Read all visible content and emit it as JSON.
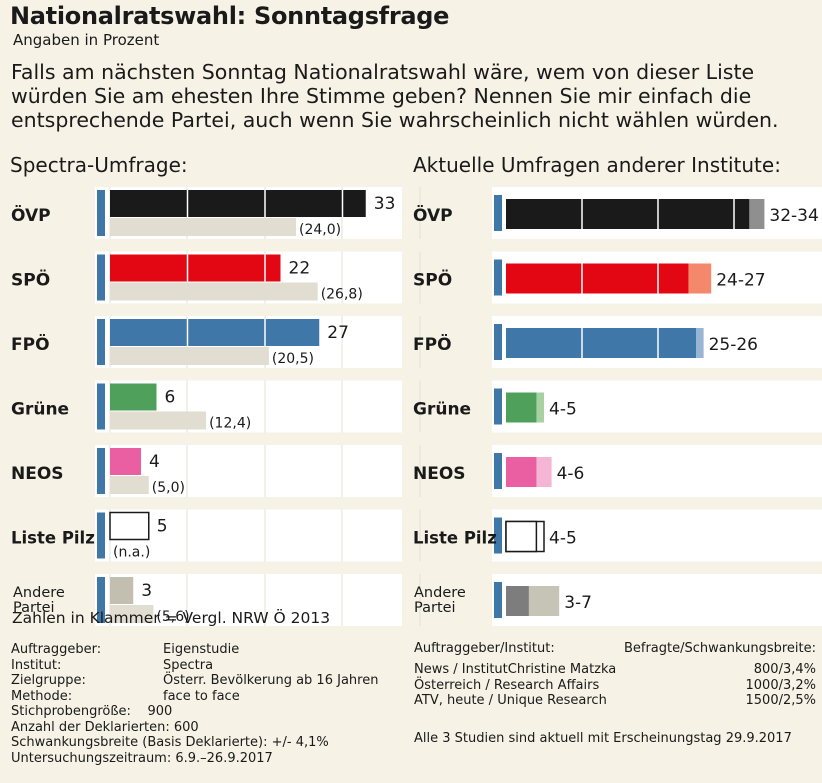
{
  "header": {
    "title": "Nationalratswahl: Sonntagsfrage",
    "subtitle": "Angaben in Prozent",
    "question": "Falls am nächsten Sonntag Nationalratswahl wäre, wem von dieser Liste würden Sie am ehesten Ihre Stimme geben?  Nennen Sie mir einfach die entsprechende Partei, auch wenn Sie wahrscheinlich nicht wählen würden."
  },
  "chart_data": [
    {
      "type": "bar",
      "title": "Spectra-Umfrage:",
      "categories": [
        "ÖVP",
        "SPÖ",
        "FPÖ",
        "Grüne",
        "NEOS",
        "Liste Pilz",
        "Andere Partei"
      ],
      "category_lines": [
        [
          "ÖVP"
        ],
        [
          "SPÖ"
        ],
        [
          "FPÖ"
        ],
        [
          "Grüne"
        ],
        [
          "NEOS"
        ],
        [
          "Liste Pilz"
        ],
        [
          "Andere",
          "Partei"
        ]
      ],
      "series": [
        {
          "values": [
            33,
            22,
            27,
            6,
            4,
            5,
            3
          ],
          "labels": [
            "33",
            "22",
            "27",
            "6",
            "4",
            "5",
            "3"
          ]
        },
        {
          "values": [
            24.0,
            26.8,
            20.5,
            12.4,
            5.0,
            null,
            5.6
          ],
          "labels": [
            "(24,0)",
            "(26,8)",
            "(20,5)",
            "(12,4)",
            "(5,0)",
            "(n.a.)",
            "(5,6)"
          ]
        }
      ],
      "colors": [
        "#1a1a1a",
        "#e30613",
        "#3f77a8",
        "#4fa05a",
        "#ea5ea2",
        "#ffffff",
        "#c2bfb1"
      ],
      "comparison_color": "#e1ddd0",
      "xlim": [
        0,
        35
      ]
    },
    {
      "type": "bar",
      "title": "Aktuelle Umfragen anderer Institute:",
      "categories": [
        "ÖVP",
        "SPÖ",
        "FPÖ",
        "Grüne",
        "NEOS",
        "Liste Pilz",
        "Andere Partei"
      ],
      "category_lines": [
        [
          "ÖVP"
        ],
        [
          "SPÖ"
        ],
        [
          "FPÖ"
        ],
        [
          "Grüne"
        ],
        [
          "NEOS"
        ],
        [
          "Liste Pilz"
        ],
        [
          "Andere",
          "Partei"
        ]
      ],
      "ranges": [
        [
          32,
          34
        ],
        [
          24,
          27
        ],
        [
          25,
          26
        ],
        [
          4,
          5
        ],
        [
          4,
          6
        ],
        [
          4,
          5
        ],
        [
          3,
          7
        ]
      ],
      "labels": [
        "32-34",
        "24-27",
        "25-26",
        "4-5",
        "4-6",
        "4-5",
        "3-7"
      ],
      "colors": [
        "#1a1a1a",
        "#e30613",
        "#3f77a8",
        "#4fa05a",
        "#ea5ea2",
        "#ffffff",
        "#7d7d7d"
      ],
      "range_colors": [
        "#8f8f8f",
        "#f4886b",
        "#9ab5d3",
        "#a7d0a3",
        "#f5b5d5",
        "#ffffff",
        "#c6c3b7"
      ],
      "xlim": [
        0,
        35
      ]
    }
  ],
  "accent_color": "#3f77a8",
  "legend_note": "Zahlen in Klammer = Vergl. NRW Ö 2013",
  "meta_left": {
    "labels": [
      "Auftraggeber:",
      "Institut:",
      "Zielgruppe:",
      "Methode:"
    ],
    "values": [
      "Eigenstudie",
      "Spectra",
      "Österr. Bevölkerung ab 16 Jahren",
      "face to face"
    ],
    "lines": [
      "Stichprobengröße:    900",
      "Anzahl der Deklarierten: 600",
      "Schwankungsbreite (Basis Deklarierte): +/- 4,1%",
      "Untersuchungszeitraum: 6.9.–26.9.2017"
    ]
  },
  "meta_right": {
    "header_left": "Auftraggeber/Institut:",
    "header_right": "Befragte/Schwankungsbreite:",
    "rows": [
      {
        "name": "News / InstitutChristine Matzka",
        "value": "800/3,4%"
      },
      {
        "name": "Österreich / Research Affairs",
        "value": "1000/3,2%"
      },
      {
        "name": "ATV, heute / Unique Research",
        "value": "1500/2,5%"
      }
    ],
    "note": "Alle 3 Studien sind aktuell mit Erscheinungstag 29.9.2017"
  }
}
